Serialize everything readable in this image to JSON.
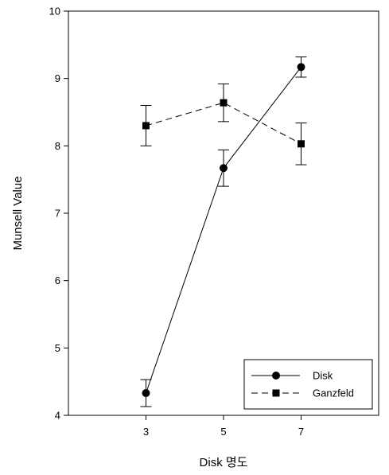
{
  "chart_data": {
    "type": "line",
    "title": "",
    "xlabel": "Disk 명도",
    "ylabel": "Munsell Value",
    "x_ticks": [
      3,
      5,
      7
    ],
    "y_ticks": [
      4,
      5,
      6,
      7,
      8,
      9,
      10
    ],
    "xlim": [
      1,
      9
    ],
    "ylim": [
      4,
      10
    ],
    "grid": false,
    "legend_position": "bottom-right",
    "series": [
      {
        "name": "Disk",
        "marker": "circle",
        "line_style": "solid",
        "x": [
          3,
          5,
          7
        ],
        "y": [
          4.33,
          7.67,
          9.17
        ],
        "error": [
          0.2,
          0.27,
          0.15
        ]
      },
      {
        "name": "Ganzfeld",
        "marker": "square",
        "line_style": "dashed",
        "x": [
          3,
          5,
          7
        ],
        "y": [
          8.3,
          8.64,
          8.03
        ],
        "error": [
          0.3,
          0.28,
          0.31
        ]
      }
    ]
  }
}
